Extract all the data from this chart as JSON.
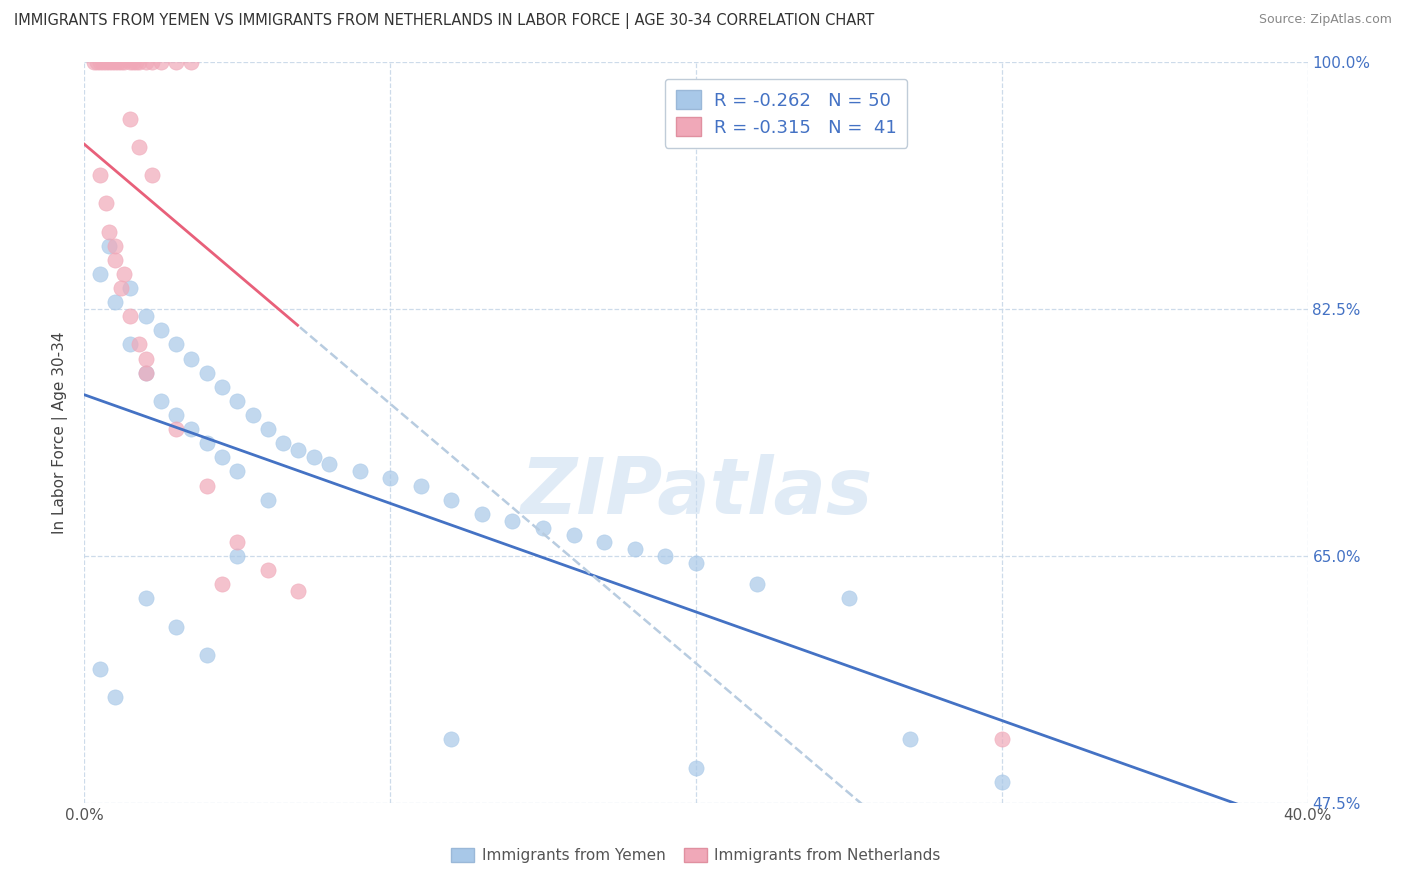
{
  "title": "IMMIGRANTS FROM YEMEN VS IMMIGRANTS FROM NETHERLANDS IN LABOR FORCE | AGE 30-34 CORRELATION CHART",
  "source": "Source: ZipAtlas.com",
  "y_ticks": [
    47.5,
    65.0,
    82.5,
    100.0
  ],
  "x_ticks": [
    0.0,
    10.0,
    20.0,
    30.0,
    40.0
  ],
  "watermark": "ZIPatlas",
  "color_blue": "#A8C8E8",
  "color_pink": "#F0A8B8",
  "color_blue_line": "#4472C4",
  "color_pink_line": "#E8607A",
  "color_dashed_line": "#B8CCE0",
  "ylabel_label": "In Labor Force | Age 30-34",
  "legend_label1": "Immigrants from Yemen",
  "legend_label2": "Immigrants from Netherlands",
  "blue_points_x": [
    0.5,
    0.8,
    1.5,
    2.0,
    2.5,
    3.0,
    3.5,
    4.0,
    4.5,
    5.0,
    5.5,
    6.0,
    6.5,
    7.0,
    7.5,
    8.0,
    9.0,
    10.0,
    11.0,
    12.0,
    13.0,
    14.0,
    15.0,
    16.0,
    17.0,
    18.0,
    19.0,
    20.0,
    22.0,
    25.0,
    1.0,
    1.5,
    2.0,
    2.5,
    3.0,
    3.5,
    4.0,
    4.5,
    5.0,
    6.0,
    0.5,
    1.0,
    2.0,
    3.0,
    4.0,
    5.0,
    12.0,
    20.0,
    27.0,
    30.0
  ],
  "blue_points_y": [
    85.0,
    87.0,
    84.0,
    82.0,
    81.0,
    80.0,
    79.0,
    78.0,
    77.0,
    76.0,
    75.0,
    74.0,
    73.0,
    72.5,
    72.0,
    71.5,
    71.0,
    70.5,
    70.0,
    69.0,
    68.0,
    67.5,
    67.0,
    66.5,
    66.0,
    65.5,
    65.0,
    64.5,
    63.0,
    62.0,
    83.0,
    80.0,
    78.0,
    76.0,
    75.0,
    74.0,
    73.0,
    72.0,
    71.0,
    69.0,
    57.0,
    55.0,
    62.0,
    60.0,
    58.0,
    65.0,
    52.0,
    50.0,
    52.0,
    49.0
  ],
  "pink_points_x": [
    0.3,
    0.5,
    0.7,
    0.8,
    0.9,
    1.0,
    1.1,
    1.2,
    1.3,
    1.5,
    1.6,
    1.7,
    1.8,
    2.0,
    2.2,
    2.5,
    3.0,
    3.5,
    0.4,
    0.6,
    0.8,
    1.0,
    1.2,
    1.5,
    1.8,
    2.0,
    0.5,
    0.7,
    1.0,
    1.3,
    2.0,
    3.0,
    4.0,
    5.0,
    6.0,
    7.0,
    30.0,
    1.5,
    1.8,
    2.2,
    4.5
  ],
  "pink_points_y": [
    100.0,
    100.0,
    100.0,
    100.0,
    100.0,
    100.0,
    100.0,
    100.0,
    100.0,
    100.0,
    100.0,
    100.0,
    100.0,
    100.0,
    100.0,
    100.0,
    100.0,
    100.0,
    100.0,
    100.0,
    88.0,
    86.0,
    84.0,
    82.0,
    80.0,
    79.0,
    92.0,
    90.0,
    87.0,
    85.0,
    78.0,
    74.0,
    70.0,
    66.0,
    64.0,
    62.5,
    52.0,
    96.0,
    94.0,
    92.0,
    63.0
  ],
  "blue_line_x_start": 0.0,
  "blue_line_x_end": 40.0,
  "pink_line_solid_end": 7.0,
  "pink_line_x_end": 40.0
}
